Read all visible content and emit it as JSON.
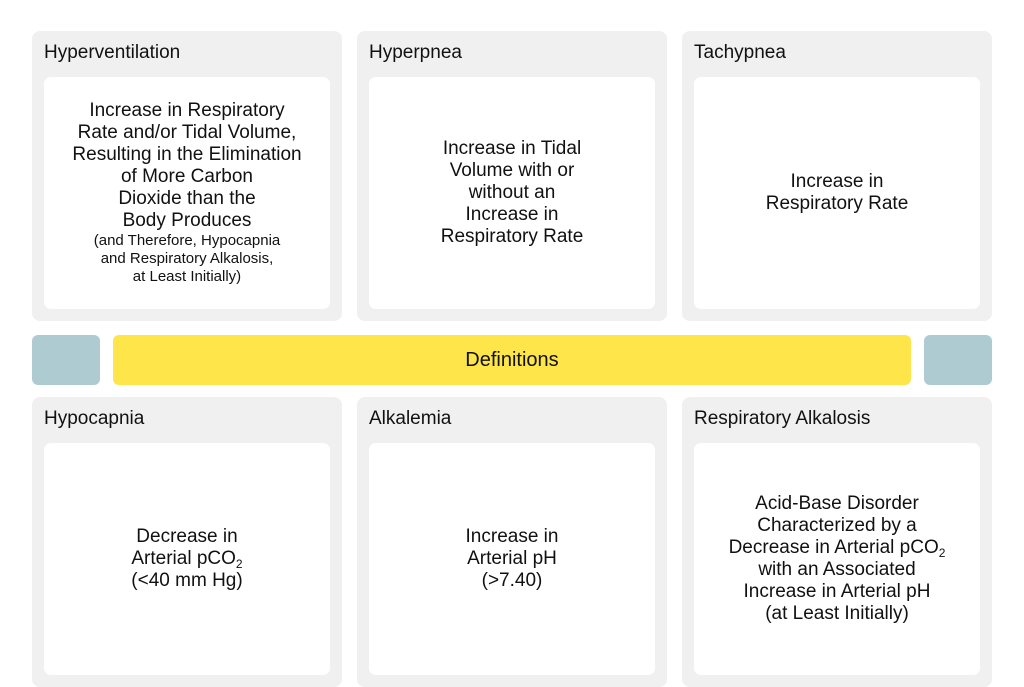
{
  "banner": {
    "label": "Definitions"
  },
  "colors": {
    "panel_bg": "#f0f0f0",
    "box_bg": "#ffffff",
    "banner_bg": "#fde54a",
    "side_tab_bg": "#aecbd2"
  },
  "panels": {
    "hyperventilation": {
      "title": "Hyperventilation",
      "lines": [
        "Increase in Respiratory",
        "Rate and/or Tidal Volume,",
        "Resulting in the Elimination",
        "of More Carbon",
        "Dioxide than the",
        "Body Produces"
      ],
      "note_lines": [
        "(and Therefore, Hypocapnia",
        "and Respiratory Alkalosis,",
        "at Least Initially)"
      ]
    },
    "hyperpnea": {
      "title": "Hyperpnea",
      "lines": [
        "Increase in Tidal",
        "Volume with or",
        "without an",
        "Increase in",
        "Respiratory Rate"
      ]
    },
    "tachypnea": {
      "title": "Tachypnea",
      "lines": [
        "Increase in",
        "Respiratory Rate"
      ]
    },
    "hypocapnia": {
      "title": "Hypocapnia",
      "line1": "Decrease in",
      "line2_prefix": "Arterial pCO",
      "line2_sub": "2",
      "line3": "(<40 mm Hg)"
    },
    "alkalemia": {
      "title": "Alkalemia",
      "lines": [
        "Increase in",
        "Arterial pH",
        "(>7.40)"
      ]
    },
    "respiratory_alkalosis": {
      "title": "Respiratory Alkalosis",
      "line1": "Acid-Base Disorder",
      "line2": "Characterized by a",
      "line3_prefix": "Decrease in Arterial pCO",
      "line3_sub": "2",
      "line4": "with an Associated",
      "line5": "Increase in Arterial pH",
      "line6": "(at Least Initially)"
    }
  }
}
